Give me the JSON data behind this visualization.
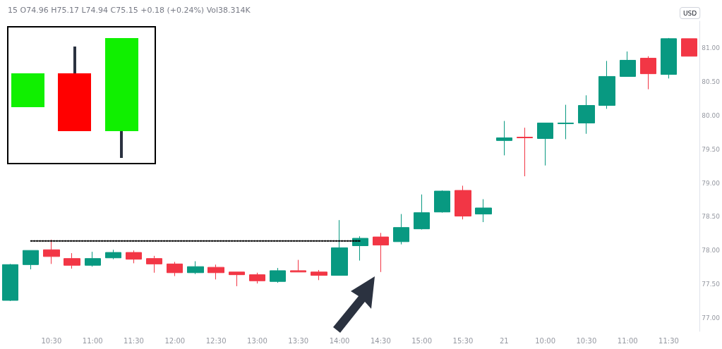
{
  "chart_data": {
    "type": "candlestick",
    "title": "15 O74.96 H75.17 L74.94 C75.15 +0.18 (+0.24%) Vol38.314K",
    "ylabel": "USD",
    "categories": [
      null,
      null,
      "10:30",
      null,
      "11:00",
      null,
      "11:30",
      null,
      "12:00",
      null,
      "12:30",
      null,
      "13:00",
      null,
      "13:30",
      null,
      "14:00",
      null,
      "14:30",
      null,
      "15:00",
      null,
      "15:30",
      null,
      "21",
      null,
      "10:00",
      null,
      "10:30",
      null,
      "11:00",
      null,
      "11:30",
      null
    ],
    "ohlc": [
      [
        77.26,
        77.8,
        77.25,
        77.79
      ],
      [
        77.79,
        78.0,
        77.72,
        78.0
      ],
      [
        78.01,
        78.16,
        77.8,
        77.91
      ],
      [
        77.88,
        77.96,
        77.73,
        77.78
      ],
      [
        77.78,
        77.98,
        77.76,
        77.88
      ],
      [
        77.89,
        78.01,
        77.87,
        77.97
      ],
      [
        77.97,
        78.0,
        77.81,
        77.87
      ],
      [
        77.88,
        77.92,
        77.67,
        77.8
      ],
      [
        77.8,
        77.83,
        77.62,
        77.67
      ],
      [
        77.67,
        77.84,
        77.65,
        77.76
      ],
      [
        77.75,
        77.79,
        77.57,
        77.67
      ],
      [
        77.68,
        77.68,
        77.47,
        77.64
      ],
      [
        77.64,
        77.67,
        77.51,
        77.55
      ],
      [
        77.54,
        77.74,
        77.52,
        77.7
      ],
      [
        77.7,
        77.86,
        77.68,
        77.68
      ],
      [
        77.68,
        77.71,
        77.56,
        77.63
      ],
      [
        77.63,
        78.45,
        77.63,
        78.04
      ],
      [
        78.07,
        78.21,
        77.85,
        78.18
      ],
      [
        78.2,
        78.26,
        77.68,
        78.08
      ],
      [
        78.13,
        78.54,
        78.09,
        78.34
      ],
      [
        78.32,
        78.83,
        78.31,
        78.56
      ],
      [
        78.57,
        78.89,
        78.56,
        78.88
      ],
      [
        78.89,
        78.96,
        78.46,
        78.51
      ],
      [
        78.54,
        78.76,
        78.42,
        78.63
      ],
      [
        79.63,
        79.92,
        79.41,
        79.67
      ],
      [
        79.68,
        79.82,
        79.1,
        79.67
      ],
      [
        79.66,
        79.89,
        79.26,
        79.89
      ],
      [
        79.88,
        80.16,
        79.65,
        79.89
      ],
      [
        79.89,
        80.3,
        79.73,
        80.15
      ],
      [
        80.15,
        80.81,
        80.1,
        80.58
      ],
      [
        80.58,
        80.95,
        80.58,
        80.82
      ],
      [
        80.85,
        80.88,
        80.39,
        80.62
      ],
      [
        80.61,
        81.15,
        80.55,
        81.14
      ],
      [
        81.14,
        81.14,
        80.88,
        80.88
      ]
    ],
    "colors": [
      "#089981",
      "#089981",
      "#f23645",
      "#f23645",
      "#089981",
      "#089981",
      "#f23645",
      "#f23645",
      "#f23645",
      "#089981",
      "#f23645",
      "#f23645",
      "#f23645",
      "#089981",
      "#f23645",
      "#f23645",
      "#089981",
      "#089981",
      "#f23645",
      "#089981",
      "#089981",
      "#089981",
      "#f23645",
      "#089981",
      "#089981",
      "#f23645",
      "#089981",
      "#089981",
      "#089981",
      "#089981",
      "#089981",
      "#f23645",
      "#089981",
      "#f23645"
    ],
    "series": [
      {
        "type": "line",
        "color": "#000000",
        "line_style": "dotted",
        "marker": "none",
        "values": [
          null,
          78.14,
          78.14,
          78.14,
          78.14,
          78.14,
          78.14,
          78.14,
          78.14,
          78.14,
          78.14,
          78.14,
          78.14,
          78.14,
          78.14,
          78.14,
          78.14,
          78.14,
          null,
          null,
          null,
          null,
          null,
          null,
          null,
          null,
          null,
          null,
          null,
          null,
          null,
          null,
          null,
          null
        ]
      }
    ],
    "ylim": [
      76.8,
      81.4
    ],
    "yticks": [
      {
        "value": 77,
        "label": "77.00"
      },
      {
        "value": 77.5,
        "label": "77.50"
      },
      {
        "value": 78,
        "label": "78.00"
      },
      {
        "value": 78.5,
        "label": "78.50"
      },
      {
        "value": 79,
        "label": "79.00"
      },
      {
        "value": 79.5,
        "label": "79.50"
      },
      {
        "value": 80,
        "label": "80.00"
      },
      {
        "value": 80.5,
        "label": "80.50"
      },
      {
        "value": 81,
        "label": "81.00"
      }
    ],
    "grid": false
  }
}
